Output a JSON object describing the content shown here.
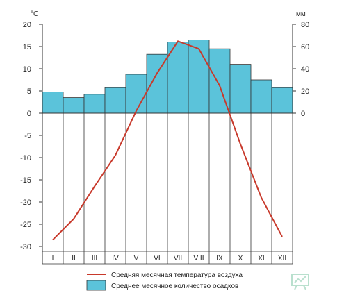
{
  "chart_data": {
    "type": "bar+line",
    "categories": [
      "I",
      "II",
      "III",
      "IV",
      "V",
      "VI",
      "VII",
      "VIII",
      "IX",
      "X",
      "XI",
      "XII"
    ],
    "temperature": {
      "name": "Средняя месячная температура воздуха",
      "values": [
        -28.5,
        -23.8,
        -16.5,
        -9.5,
        0.5,
        9.0,
        16.2,
        14.5,
        6.2,
        -7.0,
        -19.0,
        -27.8
      ],
      "color": "#c8392b"
    },
    "precipitation": {
      "name": "Среднее месячное количество осадков",
      "values": [
        19,
        14,
        17,
        23,
        35,
        53,
        64,
        66,
        58,
        44,
        30,
        23
      ],
      "color": "#5bc3da"
    },
    "left_axis": {
      "unit": "°C",
      "ylim": [
        -30,
        20
      ],
      "ticks": [
        20,
        15,
        10,
        5,
        0,
        -5,
        -10,
        -15,
        -20,
        -25,
        -30
      ]
    },
    "right_axis": {
      "unit": "мм",
      "ylim": [
        0,
        80
      ],
      "ticks": [
        80,
        60,
        40,
        20,
        0
      ]
    },
    "grid": true,
    "legend_position": "bottom"
  }
}
